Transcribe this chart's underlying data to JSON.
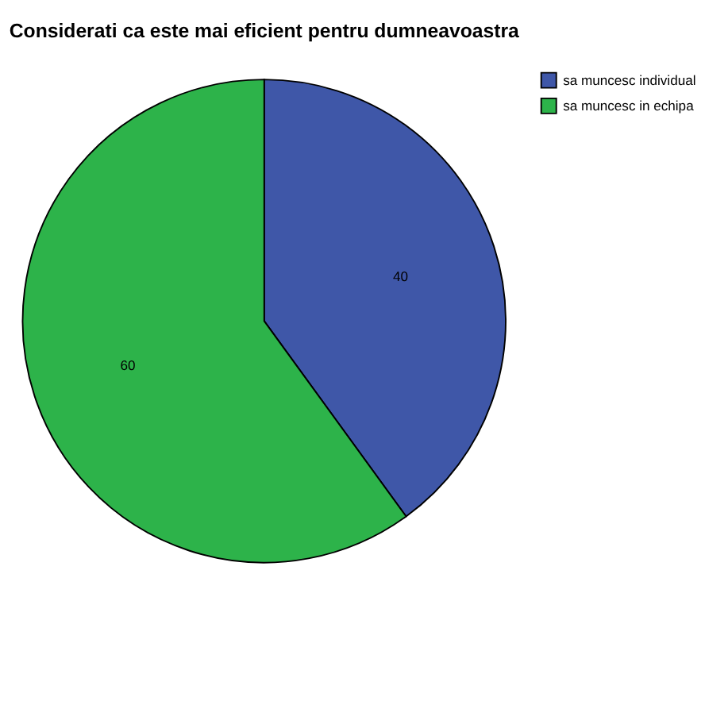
{
  "chart_data": {
    "type": "pie",
    "title": "Considerati ca este mai eficient pentru dumneavoastra",
    "categories": [
      "sa muncesc individual",
      "sa muncesc in echipa"
    ],
    "values": [
      40,
      60
    ],
    "colors": [
      "#3f57a8",
      "#2db34a"
    ],
    "data_labels": true,
    "legend": "top right"
  }
}
